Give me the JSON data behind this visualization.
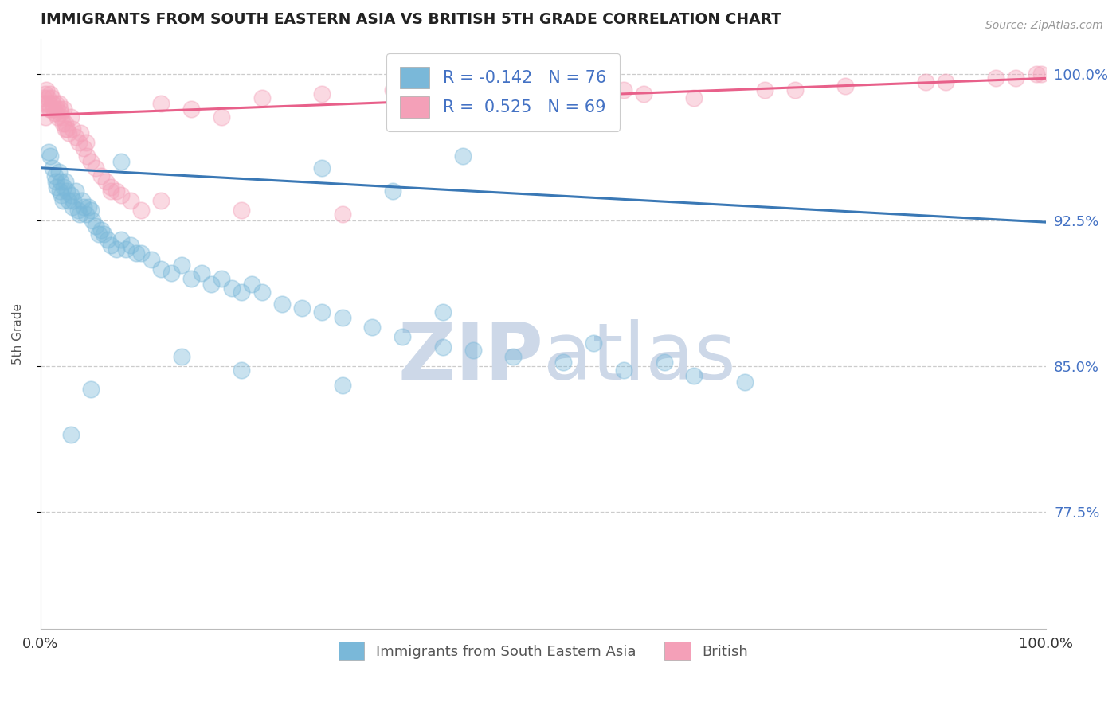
{
  "title": "IMMIGRANTS FROM SOUTH EASTERN ASIA VS BRITISH 5TH GRADE CORRELATION CHART",
  "source": "Source: ZipAtlas.com",
  "ylabel": "5th Grade",
  "xlim": [
    0.0,
    100.0
  ],
  "ylim": [
    0.715,
    1.018
  ],
  "yticks_right": [
    1.0,
    0.925,
    0.85,
    0.775
  ],
  "ytick_labels_right": [
    "100.0%",
    "92.5%",
    "85.0%",
    "77.5%"
  ],
  "blue_label": "Immigrants from South Eastern Asia",
  "pink_label": "British",
  "blue_R": -0.142,
  "blue_N": 76,
  "pink_R": 0.525,
  "pink_N": 69,
  "blue_color": "#7ab8d9",
  "pink_color": "#f4a0b8",
  "blue_line_color": "#3a78b5",
  "pink_line_color": "#e8608a",
  "blue_line_x0": 0.0,
  "blue_line_y0": 0.952,
  "blue_line_x1": 100.0,
  "blue_line_y1": 0.924,
  "pink_line_x0": 0.0,
  "pink_line_y0": 0.979,
  "pink_line_x1": 100.0,
  "pink_line_y1": 0.998,
  "blue_scatter_x": [
    0.8,
    1.0,
    1.2,
    1.4,
    1.5,
    1.6,
    1.8,
    1.9,
    2.0,
    2.1,
    2.2,
    2.3,
    2.5,
    2.6,
    2.8,
    3.0,
    3.2,
    3.3,
    3.5,
    3.7,
    3.9,
    4.1,
    4.3,
    4.5,
    4.8,
    5.0,
    5.2,
    5.5,
    5.8,
    6.0,
    6.3,
    6.7,
    7.0,
    7.5,
    8.0,
    8.5,
    9.0,
    9.5,
    10.0,
    11.0,
    12.0,
    13.0,
    14.0,
    15.0,
    16.0,
    17.0,
    18.0,
    19.0,
    20.0,
    21.0,
    22.0,
    24.0,
    26.0,
    28.0,
    30.0,
    33.0,
    36.0,
    40.0,
    43.0,
    47.0,
    52.0,
    58.0,
    65.0,
    70.0,
    28.0,
    35.0,
    42.0,
    8.0,
    5.0,
    3.0,
    14.0,
    40.0,
    55.0,
    62.0,
    20.0,
    30.0
  ],
  "blue_scatter_y": [
    0.96,
    0.958,
    0.952,
    0.948,
    0.945,
    0.942,
    0.95,
    0.94,
    0.945,
    0.938,
    0.935,
    0.942,
    0.945,
    0.94,
    0.935,
    0.938,
    0.932,
    0.935,
    0.94,
    0.93,
    0.928,
    0.935,
    0.932,
    0.928,
    0.932,
    0.93,
    0.925,
    0.922,
    0.918,
    0.92,
    0.918,
    0.915,
    0.912,
    0.91,
    0.915,
    0.91,
    0.912,
    0.908,
    0.908,
    0.905,
    0.9,
    0.898,
    0.902,
    0.895,
    0.898,
    0.892,
    0.895,
    0.89,
    0.888,
    0.892,
    0.888,
    0.882,
    0.88,
    0.878,
    0.875,
    0.87,
    0.865,
    0.86,
    0.858,
    0.855,
    0.852,
    0.848,
    0.845,
    0.842,
    0.952,
    0.94,
    0.958,
    0.955,
    0.838,
    0.815,
    0.855,
    0.878,
    0.862,
    0.852,
    0.848,
    0.84
  ],
  "pink_scatter_x": [
    0.3,
    0.4,
    0.5,
    0.6,
    0.7,
    0.8,
    0.9,
    1.0,
    1.1,
    1.2,
    1.3,
    1.4,
    1.5,
    1.6,
    1.7,
    1.8,
    1.9,
    2.0,
    2.1,
    2.2,
    2.3,
    2.5,
    2.6,
    2.8,
    3.0,
    3.2,
    3.5,
    3.8,
    4.0,
    4.3,
    4.6,
    5.0,
    5.5,
    6.0,
    6.5,
    7.0,
    7.5,
    8.0,
    9.0,
    10.0,
    12.0,
    15.0,
    18.0,
    22.0,
    28.0,
    35.0,
    42.0,
    50.0,
    58.0,
    65.0,
    72.0,
    80.0,
    88.0,
    95.0,
    99.0,
    0.5,
    1.0,
    2.5,
    4.5,
    7.0,
    12.0,
    20.0,
    30.0,
    45.0,
    60.0,
    75.0,
    90.0,
    97.0,
    99.5
  ],
  "pink_scatter_y": [
    0.988,
    0.985,
    0.99,
    0.992,
    0.988,
    0.985,
    0.982,
    0.99,
    0.988,
    0.985,
    0.982,
    0.98,
    0.985,
    0.982,
    0.978,
    0.985,
    0.982,
    0.98,
    0.978,
    0.975,
    0.982,
    0.975,
    0.972,
    0.97,
    0.978,
    0.972,
    0.968,
    0.965,
    0.97,
    0.962,
    0.958,
    0.955,
    0.952,
    0.948,
    0.945,
    0.942,
    0.94,
    0.938,
    0.935,
    0.93,
    0.985,
    0.982,
    0.978,
    0.988,
    0.99,
    0.992,
    0.988,
    0.994,
    0.992,
    0.988,
    0.992,
    0.994,
    0.996,
    0.998,
    1.0,
    0.978,
    0.982,
    0.972,
    0.965,
    0.94,
    0.935,
    0.93,
    0.928,
    0.988,
    0.99,
    0.992,
    0.996,
    0.998,
    1.0
  ],
  "background_color": "#ffffff",
  "grid_color": "#cccccc",
  "watermark_color": "#cdd8e8"
}
